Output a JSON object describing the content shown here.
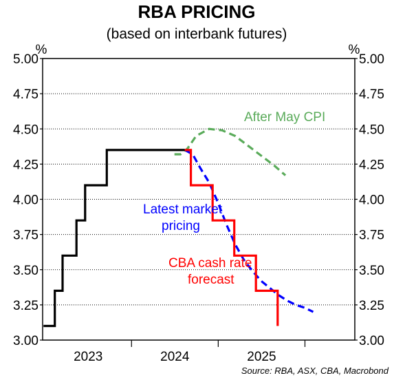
{
  "chart_data": {
    "type": "line",
    "title": "RBA PRICING",
    "subtitle": "(based on interbank futures)",
    "y_unit_left": "%",
    "y_unit_right": "%",
    "ylim": [
      3.0,
      5.0
    ],
    "yticks": [
      "5.00",
      "4.75",
      "4.50",
      "4.25",
      "4.00",
      "3.75",
      "3.50",
      "3.25",
      "3.00"
    ],
    "xlim": [
      2022.35,
      2025.95
    ],
    "xticks": [
      {
        "label": "2023",
        "x": 2022.875
      },
      {
        "label": "2024",
        "x": 2023.875
      },
      {
        "label": "2025",
        "x": 2024.875
      }
    ],
    "year_boundaries": [
      2023.375,
      2024.375,
      2025.375
    ],
    "series": [
      {
        "name": "",
        "style": "solid",
        "color": "#000000",
        "points": [
          [
            2022.36,
            3.1
          ],
          [
            2022.49,
            3.1
          ],
          [
            2022.49,
            3.35
          ],
          [
            2022.58,
            3.35
          ],
          [
            2022.58,
            3.6
          ],
          [
            2022.74,
            3.6
          ],
          [
            2022.74,
            3.85
          ],
          [
            2022.84,
            3.85
          ],
          [
            2022.84,
            4.1
          ],
          [
            2023.09,
            4.1
          ],
          [
            2023.09,
            4.35
          ],
          [
            2023.99,
            4.35
          ]
        ]
      },
      {
        "name": "CBA cash rate forecast",
        "style": "step",
        "color": "#ff0000",
        "points": [
          [
            2023.99,
            4.35
          ],
          [
            2024.06,
            4.35
          ],
          [
            2024.06,
            4.1
          ],
          [
            2024.31,
            4.1
          ],
          [
            2024.31,
            3.85
          ],
          [
            2024.56,
            3.85
          ],
          [
            2024.56,
            3.6
          ],
          [
            2024.81,
            3.6
          ],
          [
            2024.81,
            3.35
          ],
          [
            2025.06,
            3.35
          ],
          [
            2025.06,
            3.1
          ]
        ]
      },
      {
        "name": "Latest market pricing",
        "style": "dashed",
        "color": "#0000ff",
        "points": [
          [
            2023.99,
            4.35
          ],
          [
            2024.08,
            4.32
          ],
          [
            2024.17,
            4.22
          ],
          [
            2024.27,
            4.12
          ],
          [
            2024.37,
            3.98
          ],
          [
            2024.47,
            3.82
          ],
          [
            2024.57,
            3.68
          ],
          [
            2024.67,
            3.57
          ],
          [
            2024.77,
            3.49
          ],
          [
            2024.87,
            3.42
          ],
          [
            2024.97,
            3.37
          ],
          [
            2025.07,
            3.32
          ],
          [
            2025.17,
            3.28
          ],
          [
            2025.27,
            3.25
          ],
          [
            2025.37,
            3.23
          ],
          [
            2025.47,
            3.2
          ]
        ]
      },
      {
        "name": "After May CPI",
        "style": "dashed",
        "color": "#5aab5a",
        "points": [
          [
            2023.87,
            4.32
          ],
          [
            2023.94,
            4.32
          ],
          [
            2024.02,
            4.36
          ],
          [
            2024.12,
            4.45
          ],
          [
            2024.27,
            4.5
          ],
          [
            2024.42,
            4.49
          ],
          [
            2024.57,
            4.45
          ],
          [
            2024.72,
            4.38
          ],
          [
            2024.87,
            4.31
          ],
          [
            2025.02,
            4.24
          ],
          [
            2025.15,
            4.17
          ]
        ]
      }
    ],
    "annotations": [
      {
        "text": "After May CPI",
        "color": "#5aab5a"
      },
      {
        "text": "Latest market",
        "color": "#0000ff"
      },
      {
        "text": "pricing",
        "color": "#0000ff"
      },
      {
        "text": "CBA cash rate",
        "color": "#ff0000"
      },
      {
        "text": "forecast",
        "color": "#ff0000"
      }
    ],
    "source": "Source: RBA, ASX, CBA, Macrobond"
  }
}
